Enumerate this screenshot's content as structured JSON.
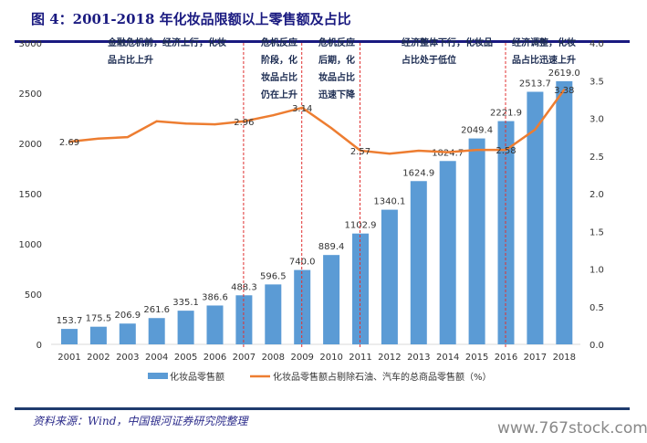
{
  "title": "图 4：2001-2018 年化妆品限额以上零售额及占比",
  "source": "资料来源：Wind，中国银河证券研究院整理",
  "watermark": "www.767stock.com",
  "chart_data": {
    "type": "bar+line",
    "categories": [
      "2001",
      "2002",
      "2003",
      "2004",
      "2005",
      "2006",
      "2007",
      "2008",
      "2009",
      "2010",
      "2011",
      "2012",
      "2013",
      "2014",
      "2015",
      "2016",
      "2017",
      "2018"
    ],
    "series": [
      {
        "name": "化妆品零售额",
        "type": "bar",
        "axis": "left",
        "color": "#5b9bd5",
        "values": [
          153.7,
          175.5,
          206.9,
          261.6,
          335.1,
          386.6,
          488.3,
          596.5,
          740.0,
          889.4,
          1102.9,
          1340.1,
          1624.9,
          1824.7,
          2049.4,
          2221.9,
          2513.7,
          2619.0
        ]
      },
      {
        "name": "化妆品零售额占剔除石油、汽车的总商品零售额（%）",
        "type": "line",
        "axis": "right",
        "color": "#ed7d31",
        "values": [
          2.69,
          2.73,
          2.75,
          2.96,
          2.93,
          2.92,
          2.96,
          3.04,
          3.14,
          2.87,
          2.57,
          2.53,
          2.57,
          2.55,
          2.58,
          2.58,
          2.85,
          3.38
        ],
        "labeled": {
          "2001": "2.69",
          "2007": "2.96",
          "2009": "3.14",
          "2011": "2.57",
          "2016": "2.58",
          "2018": "3.38"
        }
      }
    ],
    "left_axis": {
      "min": 0,
      "max": 3000,
      "ticks": [
        "0",
        "500",
        "1000",
        "1500",
        "2000",
        "2500",
        "3000"
      ]
    },
    "right_axis": {
      "min": 0,
      "max": 4.0,
      "ticks": [
        "0.0",
        "0.5",
        "1.0",
        "1.5",
        "2.0",
        "2.5",
        "3.0",
        "3.5",
        "4.0"
      ]
    },
    "legend_position": "bottom",
    "grid": false,
    "dividers": [
      "2007",
      "2009",
      "2011",
      "2016"
    ],
    "annotations": [
      {
        "lines": [
          "金融危机前，经济上行，化妆",
          "品占比上升"
        ]
      },
      {
        "lines": [
          "危机反应",
          "阶段，化",
          "妆品占比",
          "仍在上升"
        ]
      },
      {
        "lines": [
          "危机反应",
          "后期，化",
          "妆品占比",
          "迅速下降"
        ]
      },
      {
        "lines": [
          "经济整体下行，化妆品",
          "占比处于低位"
        ]
      },
      {
        "lines": [
          "经济调整，化妆",
          "品占比迅速上升"
        ]
      }
    ]
  }
}
